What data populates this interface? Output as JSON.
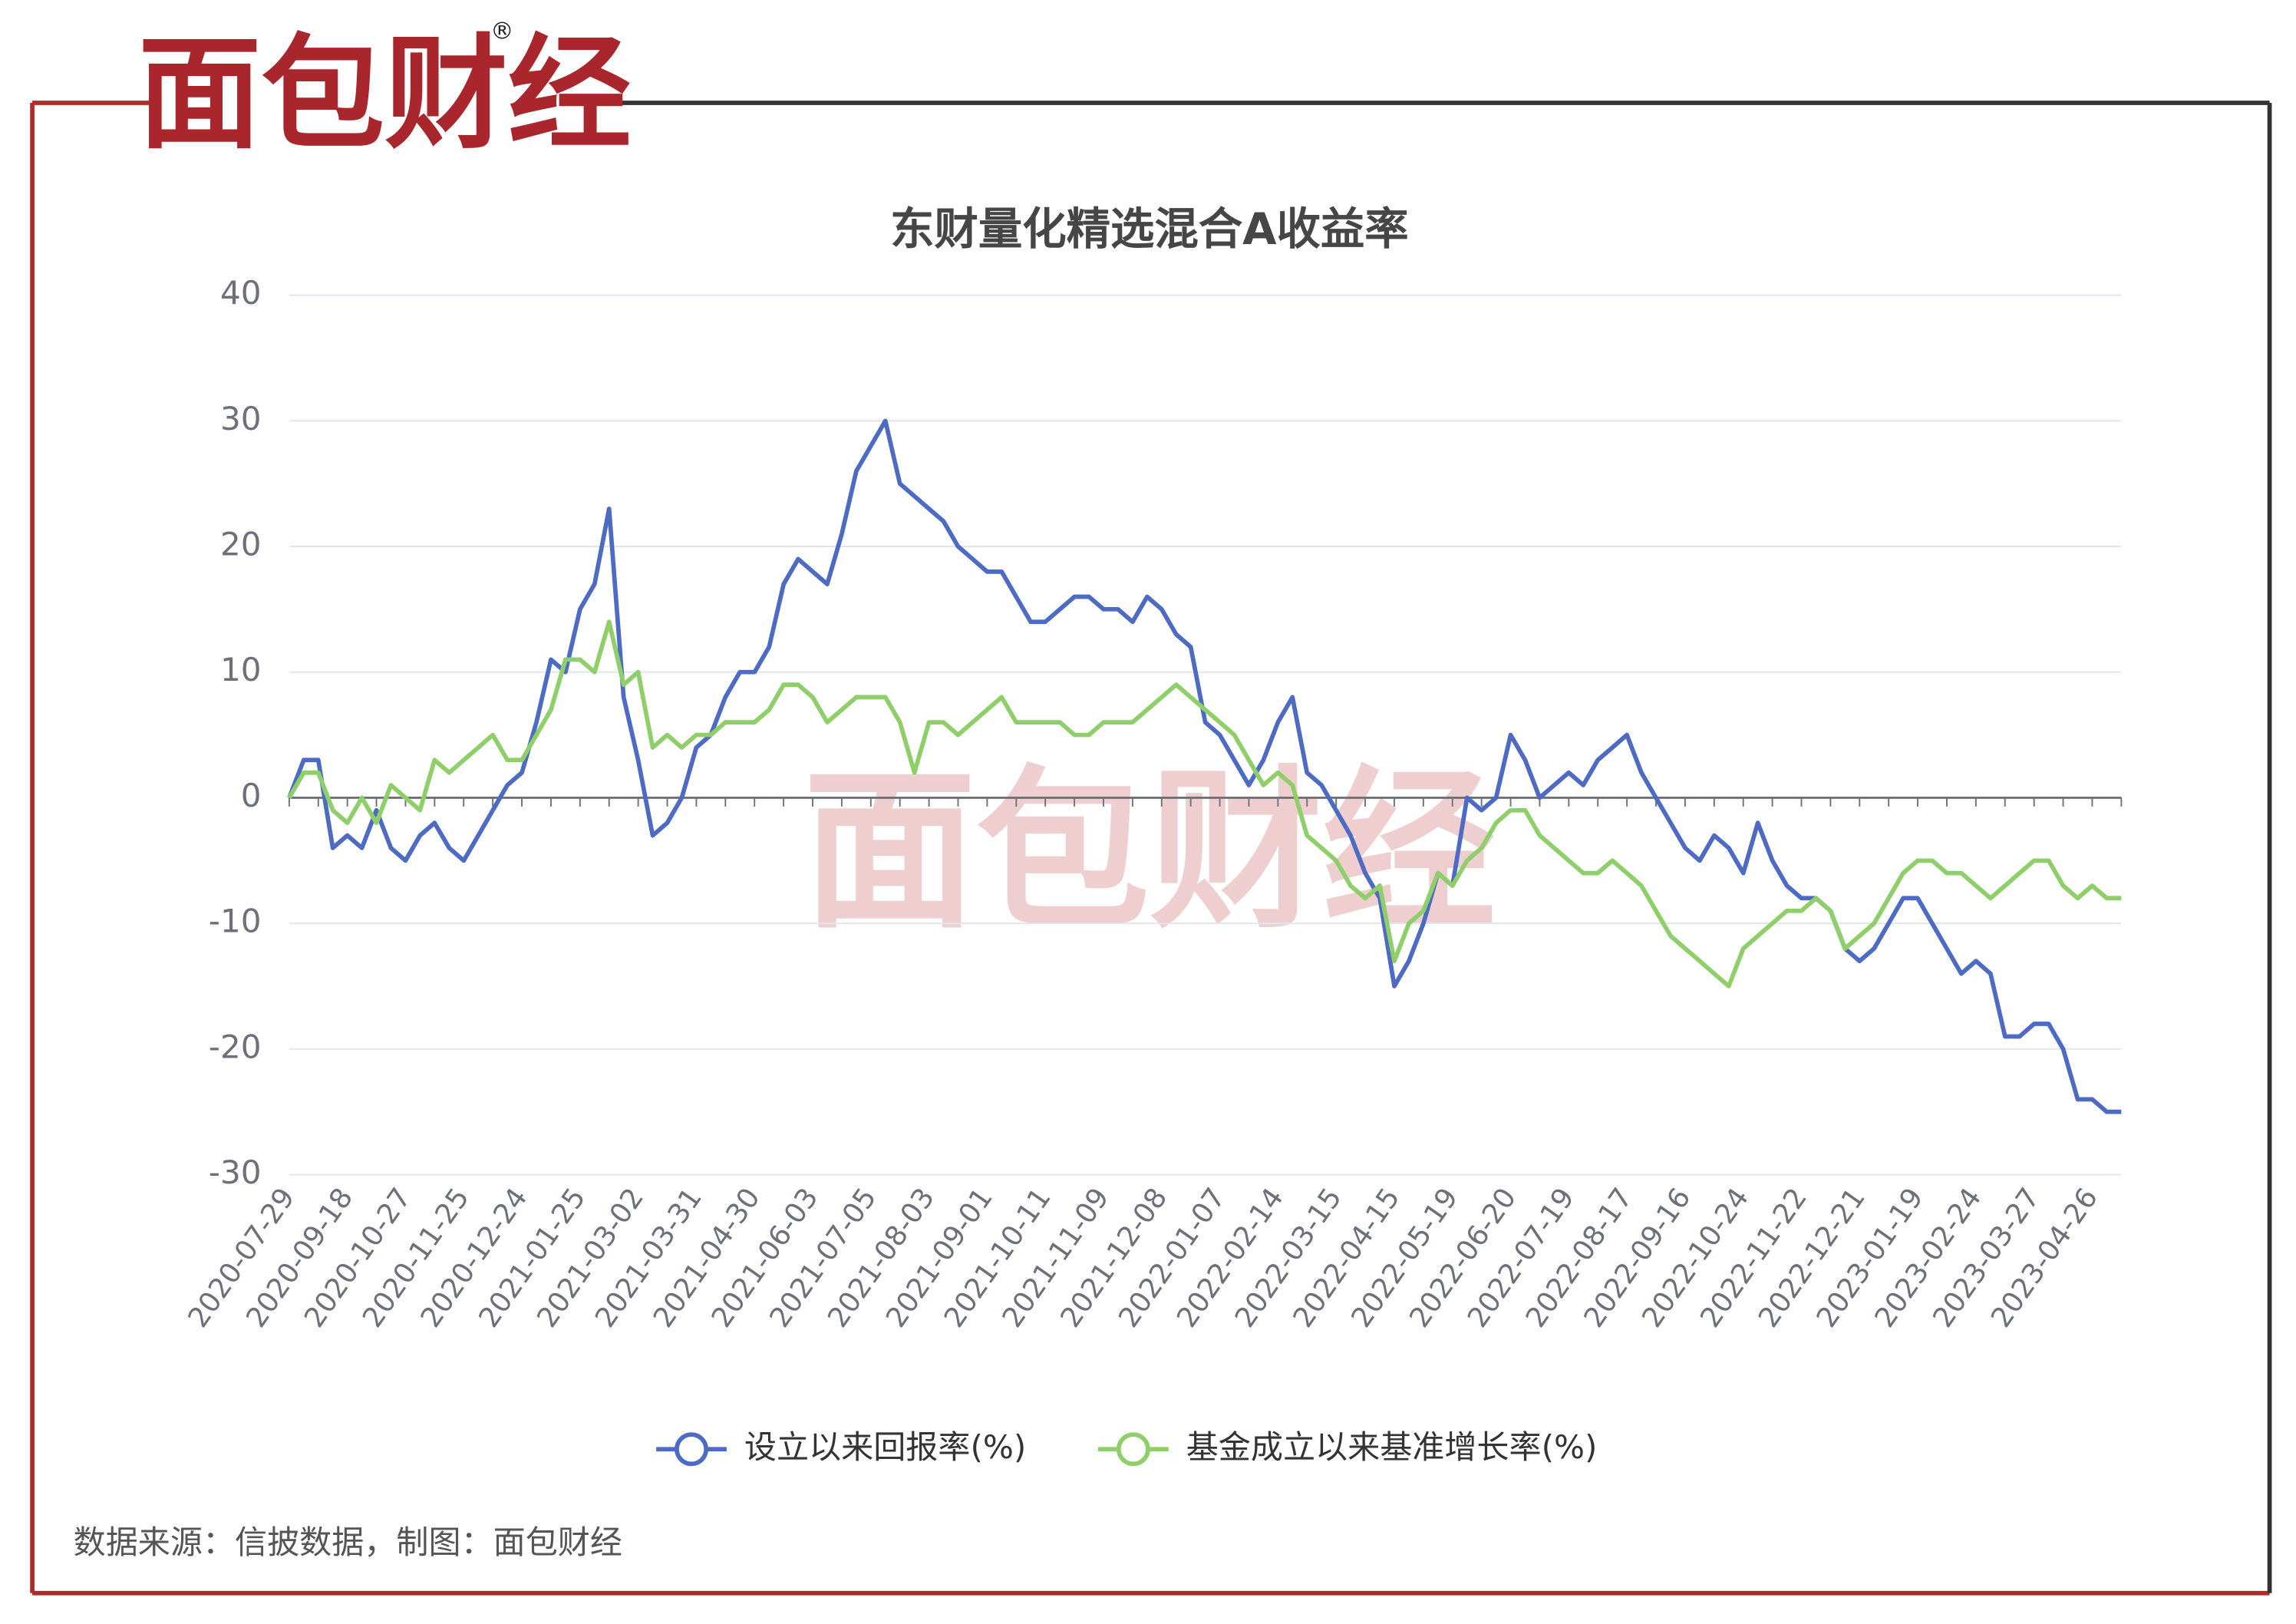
{
  "logo": "面包财经",
  "registered": "®",
  "source": "数据来源：信披数据，制图：面包财经",
  "chart_data": {
    "type": "line",
    "title": "东财量化精选混合A收益率",
    "categories": [
      "2020-07-29",
      null,
      null,
      null,
      "2020-09-18",
      null,
      null,
      null,
      "2020-10-27",
      null,
      null,
      null,
      "2020-11-25",
      null,
      null,
      null,
      "2020-12-24",
      null,
      null,
      null,
      "2021-01-25",
      null,
      null,
      null,
      "2021-03-02",
      null,
      null,
      null,
      "2021-03-31",
      null,
      null,
      null,
      "2021-04-30",
      null,
      null,
      null,
      "2021-06-03",
      null,
      null,
      null,
      "2021-07-05",
      null,
      null,
      null,
      "2021-08-03",
      null,
      null,
      null,
      "2021-09-01",
      null,
      null,
      null,
      "2021-10-11",
      null,
      null,
      null,
      "2021-11-09",
      null,
      null,
      null,
      "2021-12-08",
      null,
      null,
      null,
      "2022-01-07",
      null,
      null,
      null,
      "2022-02-14",
      null,
      null,
      null,
      "2022-03-15",
      null,
      null,
      null,
      "2022-04-15",
      null,
      null,
      null,
      "2022-05-19",
      null,
      null,
      null,
      "2022-06-20",
      null,
      null,
      null,
      "2022-07-19",
      null,
      null,
      null,
      "2022-08-17",
      null,
      null,
      null,
      "2022-09-16",
      null,
      null,
      null,
      "2022-10-24",
      null,
      null,
      null,
      "2022-11-22",
      null,
      null,
      null,
      "2022-12-21",
      null,
      null,
      null,
      "2023-01-19",
      null,
      null,
      null,
      "2023-02-24",
      null,
      null,
      null,
      "2023-03-27",
      null,
      null,
      null,
      "2023-04-26",
      null,
      null
    ],
    "series": [
      {
        "name": "设立以来回报率(%)",
        "color": "#4e6bc4",
        "values": [
          0,
          3,
          3,
          -4,
          -3,
          -4,
          -1,
          -4,
          -5,
          -3,
          -2,
          -4,
          -5,
          -3,
          -1,
          1,
          2,
          6,
          11,
          10,
          15,
          17,
          23,
          8,
          3,
          -3,
          -2,
          0,
          4,
          5,
          8,
          10,
          10,
          12,
          17,
          19,
          18,
          17,
          21,
          26,
          28,
          30,
          25,
          24,
          23,
          22,
          20,
          19,
          18,
          18,
          16,
          14,
          14,
          15,
          16,
          16,
          15,
          15,
          14,
          16,
          15,
          13,
          12,
          6,
          5,
          3,
          1,
          3,
          6,
          8,
          2,
          1,
          -1,
          -3,
          -6,
          -8,
          -15,
          -13,
          -10,
          -6,
          -7,
          0,
          -1,
          0,
          5,
          3,
          0,
          1,
          2,
          1,
          3,
          4,
          5,
          2,
          0,
          -2,
          -4,
          -5,
          -3,
          -4,
          -6,
          -2,
          -5,
          -7,
          -8,
          -8,
          -9,
          -12,
          -13,
          -12,
          -10,
          -8,
          -8,
          -10,
          -12,
          -14,
          -13,
          -14,
          -19,
          -19,
          -18,
          -18,
          -20,
          -24,
          -24,
          -25,
          -25
        ]
      },
      {
        "name": "基金成立以来基准增长率(%)",
        "color": "#8fcf6a",
        "values": [
          0,
          2,
          2,
          -1,
          -2,
          0,
          -2,
          1,
          0,
          -1,
          3,
          2,
          3,
          4,
          5,
          3,
          3,
          5,
          7,
          11,
          11,
          10,
          14,
          9,
          10,
          4,
          5,
          4,
          5,
          5,
          6,
          6,
          6,
          7,
          9,
          9,
          8,
          6,
          7,
          8,
          8,
          8,
          6,
          2,
          6,
          6,
          5,
          6,
          7,
          8,
          6,
          6,
          6,
          6,
          5,
          5,
          6,
          6,
          6,
          7,
          8,
          9,
          8,
          7,
          6,
          5,
          3,
          1,
          2,
          1,
          -3,
          -4,
          -5,
          -7,
          -8,
          -7,
          -13,
          -10,
          -9,
          -6,
          -7,
          -5,
          -4,
          -2,
          -1,
          -1,
          -3,
          -4,
          -5,
          -6,
          -6,
          -5,
          -6,
          -7,
          -9,
          -11,
          -12,
          -13,
          -14,
          -15,
          -12,
          -11,
          -10,
          -9,
          -9,
          -8,
          -9,
          -12,
          -11,
          -10,
          -8,
          -6,
          -5,
          -5,
          -6,
          -6,
          -7,
          -8,
          -7,
          -6,
          -5,
          -5,
          -7,
          -8,
          -7,
          -8,
          -8
        ]
      }
    ],
    "ylim": [
      -30,
      40
    ],
    "yticks": [
      -30,
      -20,
      -10,
      0,
      10,
      20,
      30,
      40
    ],
    "grid": true,
    "legend": "bottom"
  }
}
